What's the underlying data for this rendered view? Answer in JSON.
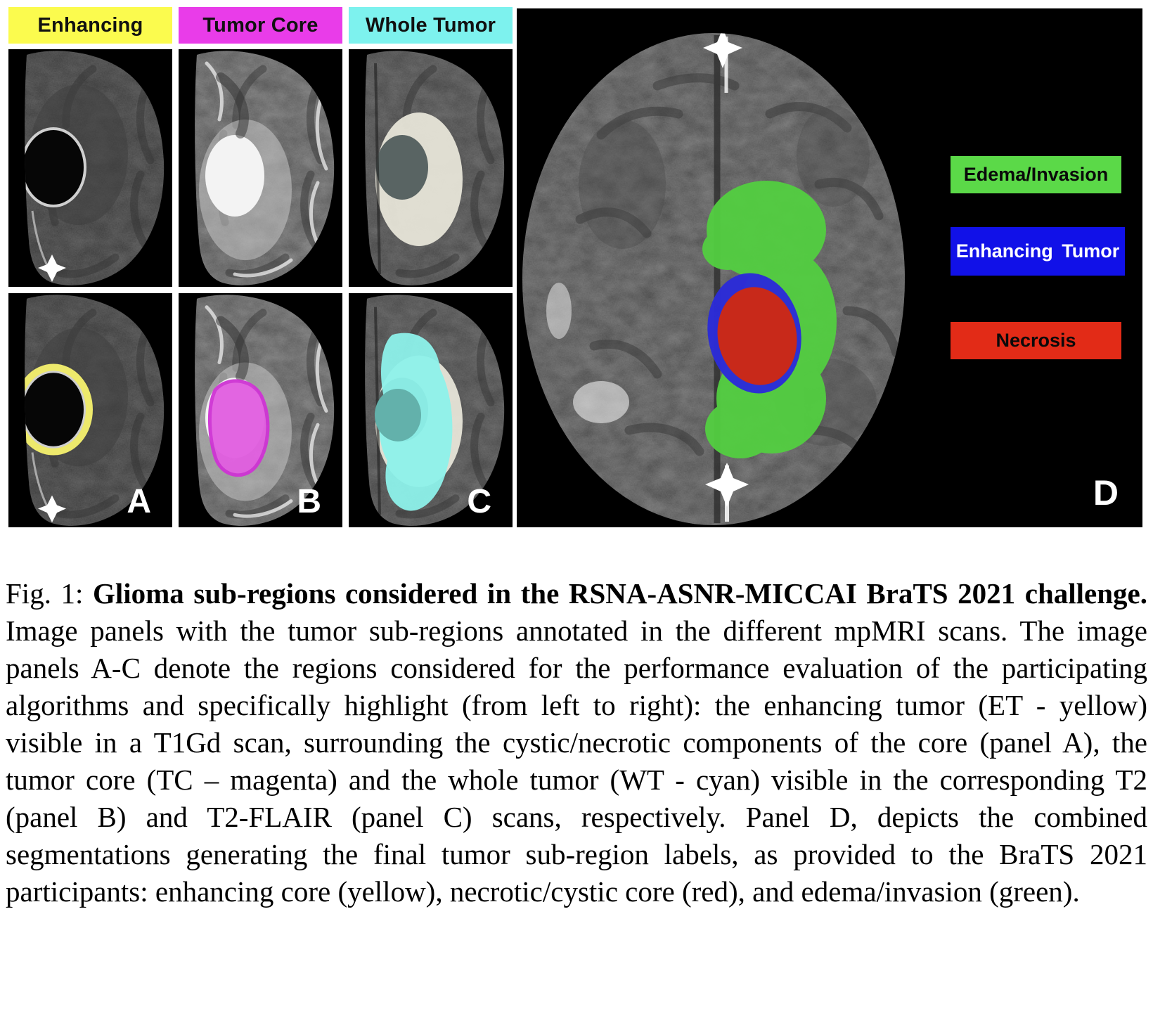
{
  "figure": {
    "column_headers": [
      {
        "label": "Enhancing",
        "color": "#fbfb4e",
        "text_color": "#111111"
      },
      {
        "label": "Tumor Core",
        "color": "#e93ce9",
        "text_color": "#111111"
      },
      {
        "label": "Whole Tumor",
        "color": "#7df2ee",
        "text_color": "#111111"
      }
    ],
    "panel_letters": {
      "a": "A",
      "b": "B",
      "c": "C",
      "d": "D"
    },
    "legend": [
      {
        "label": "Edema/Invasion",
        "color": "#5bd948",
        "text_color": "#0a0a0a"
      },
      {
        "label": "Enhancing Tumor",
        "color": "#1111e8",
        "text_color": "#ffffff"
      },
      {
        "label": "Necrosis",
        "color": "#e22b17",
        "text_color": "#0a0a0a"
      }
    ],
    "overlay_colors": {
      "enhancing_yellow": "#ede96c",
      "tumor_core_magenta": "#e15fe0",
      "whole_tumor_cyan": "#8df1ea",
      "edema_green": "#53cf41",
      "enhancing_blue": "#2b2bd8",
      "necrosis_red": "#c8291a"
    }
  },
  "caption": {
    "prefix": "Fig. 1: ",
    "bold": "Glioma sub-regions considered in the RSNA-ASNR-MICCAI BraTS 2021 challenge.",
    "body": " Image panels with the tumor sub-regions annotated in the different mpMRI scans. The image panels A-C denote the regions considered for the performance evaluation of the participating algorithms and specifically highlight (from left to right): the enhancing tumor (ET - yellow) visible in a T1Gd scan, surrounding the cystic/necrotic components of the core (panel A), the tumor core (TC – magenta) and the whole tumor (WT - cyan) visible in the corresponding T2 (panel B) and T2-FLAIR (panel C) scans, respectively. Panel D, depicts the combined segmentations generating the final tumor sub-region labels, as provided to the BraTS 2021 participants: enhancing core (yellow), necrotic/cystic core (red), and edema/invasion (green)."
  }
}
